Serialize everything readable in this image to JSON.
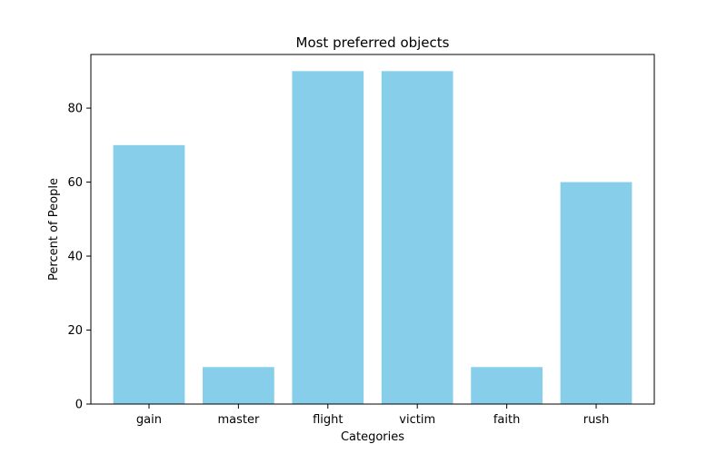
{
  "chart_data": {
    "type": "bar",
    "title": "Most preferred objects",
    "xlabel": "Categories",
    "ylabel": "Percent of People",
    "categories": [
      "gain",
      "master",
      "flight",
      "victim",
      "faith",
      "rush"
    ],
    "values": [
      70,
      10,
      90,
      90,
      10,
      60
    ],
    "ylim": [
      0,
      94.5
    ],
    "yticks": [
      0,
      20,
      40,
      60,
      80
    ],
    "bar_color": "#87ceeb",
    "grid": false,
    "legend": false
  }
}
